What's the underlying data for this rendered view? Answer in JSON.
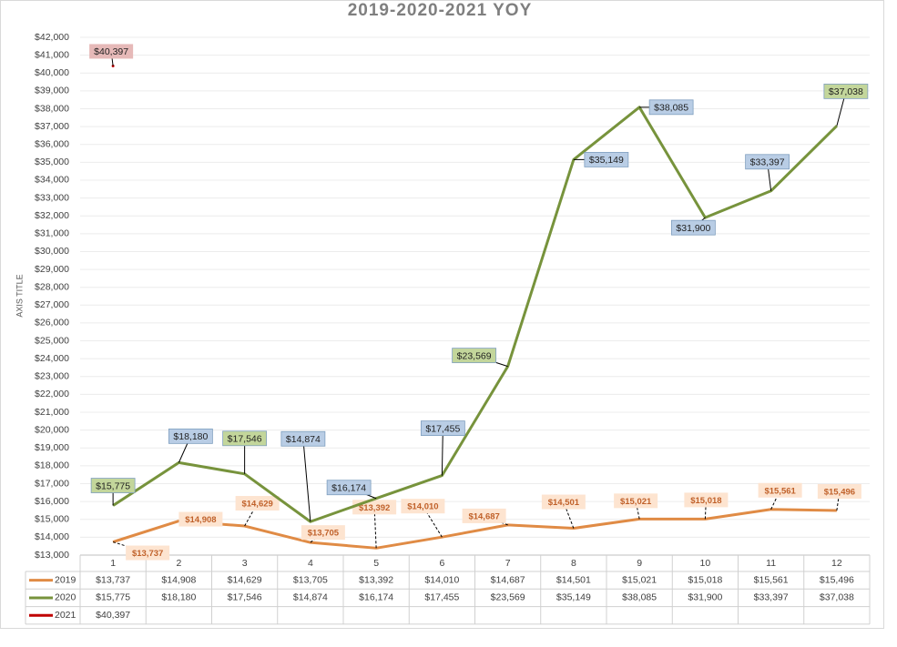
{
  "chart_data": {
    "type": "line",
    "title": "2019-2020-2021 YOY",
    "y_axis_label": "AXIS TITLE",
    "categories": [
      "1",
      "2",
      "3",
      "4",
      "5",
      "6",
      "7",
      "8",
      "9",
      "10",
      "11",
      "12"
    ],
    "ylim": [
      13000,
      42000
    ],
    "yticks": [
      {
        "value": 13000,
        "label": "$13,000"
      },
      {
        "value": 14000,
        "label": "$14,000"
      },
      {
        "value": 15000,
        "label": "$15,000"
      },
      {
        "value": 16000,
        "label": "$16,000"
      },
      {
        "value": 17000,
        "label": "$17,000"
      },
      {
        "value": 18000,
        "label": "$18,000"
      },
      {
        "value": 19000,
        "label": "$19,000"
      },
      {
        "value": 20000,
        "label": "$20,000"
      },
      {
        "value": 21000,
        "label": "$21,000"
      },
      {
        "value": 22000,
        "label": "$22,000"
      },
      {
        "value": 23000,
        "label": "$23,000"
      },
      {
        "value": 24000,
        "label": "$24,000"
      },
      {
        "value": 25000,
        "label": "$25,000"
      },
      {
        "value": 26000,
        "label": "$26,000"
      },
      {
        "value": 27000,
        "label": "$27,000"
      },
      {
        "value": 28000,
        "label": "$28,000"
      },
      {
        "value": 29000,
        "label": "$29,000"
      },
      {
        "value": 30000,
        "label": "$30,000"
      },
      {
        "value": 31000,
        "label": "$31,000"
      },
      {
        "value": 32000,
        "label": "$32,000"
      },
      {
        "value": 33000,
        "label": "$33,000"
      },
      {
        "value": 34000,
        "label": "$34,000"
      },
      {
        "value": 35000,
        "label": "$35,000"
      },
      {
        "value": 36000,
        "label": "$36,000"
      },
      {
        "value": 37000,
        "label": "$37,000"
      },
      {
        "value": 38000,
        "label": "$38,000"
      },
      {
        "value": 39000,
        "label": "$39,000"
      },
      {
        "value": 40000,
        "label": "$40,000"
      },
      {
        "value": 41000,
        "label": "$41,000"
      },
      {
        "value": 42000,
        "label": "$42,000"
      }
    ],
    "grid": true,
    "series": [
      {
        "name": "2019",
        "color": "#e08b45",
        "values": [
          13737,
          14908,
          14629,
          13705,
          13392,
          14010,
          14687,
          14501,
          15021,
          15018,
          15561,
          15496
        ],
        "value_labels": [
          "$13,737",
          "$14,908",
          "$14,629",
          "$13,705",
          "$13,392",
          "$14,010",
          "$14,687",
          "$14,501",
          "$15,021",
          "$15,018",
          "$15,561",
          "$15,496"
        ]
      },
      {
        "name": "2020",
        "color": "#77933c",
        "values": [
          15775,
          18180,
          17546,
          14874,
          16174,
          17455,
          23569,
          35149,
          38085,
          31900,
          33397,
          37038
        ],
        "value_labels": [
          "$15,775",
          "$18,180",
          "$17,546",
          "$14,874",
          "$16,174",
          "$17,455",
          "$23,569",
          "$35,149",
          "$38,085",
          "$31,900",
          "$33,397",
          "$37,038"
        ]
      },
      {
        "name": "2021",
        "color": "#c00000",
        "values": [
          40397,
          null,
          null,
          null,
          null,
          null,
          null,
          null,
          null,
          null,
          null,
          null
        ],
        "value_labels": [
          "$40,397",
          null,
          null,
          null,
          null,
          null,
          null,
          null,
          null,
          null,
          null,
          null
        ]
      }
    ]
  }
}
